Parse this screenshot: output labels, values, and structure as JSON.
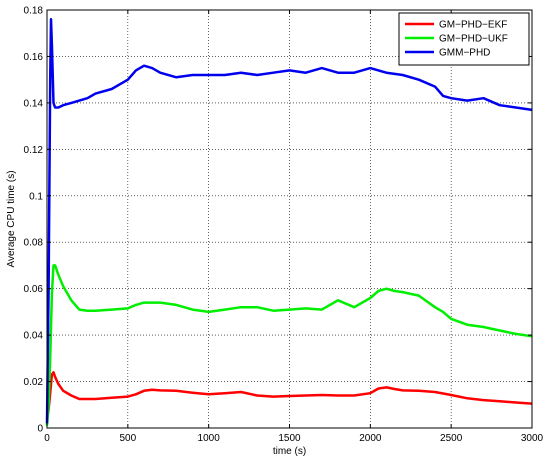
{
  "chart_data": {
    "type": "line",
    "xlabel": "time (s)",
    "ylabel": "Average CPU time (s)",
    "xlim": [
      0,
      3000
    ],
    "ylim": [
      0,
      0.18
    ],
    "grid": true,
    "legend_position": "top-right",
    "x_ticks": [
      "0",
      "500",
      "1000",
      "1500",
      "2000",
      "2500",
      "3000"
    ],
    "y_ticks": [
      "0",
      "0.02",
      "0.04",
      "0.06",
      "0.08",
      "0.1",
      "0.12",
      "0.14",
      "0.16",
      "0.18"
    ],
    "series": [
      {
        "name": "GM−PHD−EKF",
        "color": "#ff0000",
        "x": [
          0,
          10,
          20,
          30,
          40,
          50,
          70,
          100,
          150,
          200,
          300,
          400,
          500,
          550,
          600,
          650,
          700,
          800,
          900,
          1000,
          1100,
          1200,
          1300,
          1400,
          1500,
          1600,
          1700,
          1800,
          1900,
          2000,
          2050,
          2100,
          2150,
          2200,
          2300,
          2400,
          2500,
          2600,
          2700,
          2800,
          2900,
          3000
        ],
        "y": [
          0.004,
          0.008,
          0.015,
          0.023,
          0.024,
          0.022,
          0.019,
          0.016,
          0.014,
          0.0125,
          0.0125,
          0.013,
          0.0135,
          0.0145,
          0.016,
          0.0165,
          0.0162,
          0.016,
          0.0152,
          0.0145,
          0.015,
          0.0155,
          0.014,
          0.0135,
          0.0138,
          0.014,
          0.0142,
          0.014,
          0.014,
          0.015,
          0.017,
          0.0175,
          0.0168,
          0.0162,
          0.016,
          0.0155,
          0.0142,
          0.0128,
          0.012,
          0.0115,
          0.011,
          0.0105
        ]
      },
      {
        "name": "GM−PHD−UKF",
        "color": "#00ee00",
        "x": [
          0,
          10,
          20,
          30,
          40,
          50,
          70,
          100,
          150,
          200,
          250,
          300,
          400,
          500,
          550,
          600,
          700,
          800,
          900,
          1000,
          1100,
          1200,
          1300,
          1400,
          1500,
          1600,
          1700,
          1750,
          1800,
          1900,
          2000,
          2050,
          2100,
          2150,
          2200,
          2300,
          2400,
          2450,
          2500,
          2600,
          2700,
          2800,
          2900,
          3000
        ],
        "y": [
          0.001,
          0.01,
          0.03,
          0.058,
          0.07,
          0.07,
          0.066,
          0.061,
          0.055,
          0.051,
          0.0505,
          0.0505,
          0.051,
          0.0515,
          0.053,
          0.054,
          0.054,
          0.053,
          0.051,
          0.05,
          0.051,
          0.052,
          0.052,
          0.0505,
          0.051,
          0.0515,
          0.051,
          0.053,
          0.055,
          0.052,
          0.056,
          0.059,
          0.06,
          0.059,
          0.0585,
          0.057,
          0.052,
          0.05,
          0.047,
          0.0445,
          0.0435,
          0.042,
          0.0405,
          0.0395
        ]
      },
      {
        "name": "GMM−PHD",
        "color": "#0000ee",
        "x": [
          0,
          10,
          20,
          25,
          30,
          40,
          50,
          70,
          100,
          150,
          200,
          250,
          300,
          400,
          450,
          500,
          550,
          600,
          650,
          700,
          800,
          900,
          1000,
          1100,
          1200,
          1300,
          1400,
          1500,
          1600,
          1700,
          1800,
          1900,
          2000,
          2100,
          2200,
          2300,
          2400,
          2450,
          2500,
          2600,
          2700,
          2800,
          2900,
          3000
        ],
        "y": [
          0.002,
          0.06,
          0.15,
          0.176,
          0.165,
          0.14,
          0.138,
          0.138,
          0.139,
          0.14,
          0.141,
          0.142,
          0.144,
          0.146,
          0.148,
          0.15,
          0.154,
          0.156,
          0.155,
          0.153,
          0.151,
          0.152,
          0.152,
          0.152,
          0.153,
          0.152,
          0.153,
          0.154,
          0.153,
          0.155,
          0.153,
          0.153,
          0.155,
          0.153,
          0.152,
          0.15,
          0.147,
          0.143,
          0.142,
          0.141,
          0.142,
          0.139,
          0.138,
          0.137
        ]
      }
    ]
  }
}
